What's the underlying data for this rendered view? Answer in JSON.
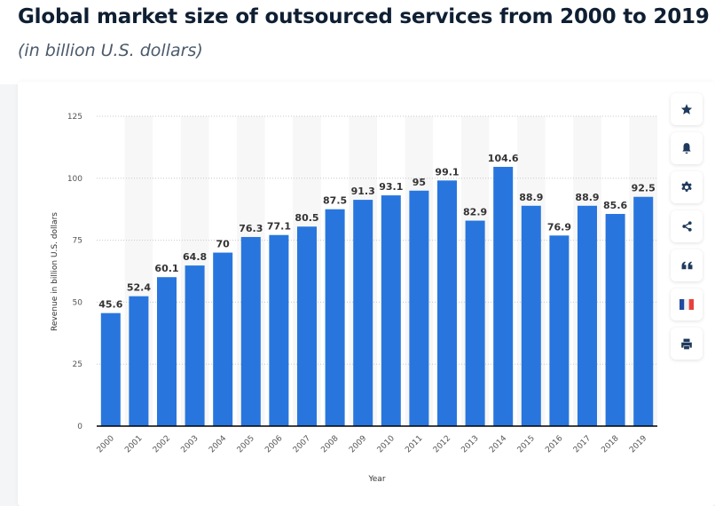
{
  "header": {
    "title": "Global market size of outsourced services from 2000 to 2019",
    "subtitle": "(in billion U.S. dollars)"
  },
  "toolbar": {
    "buttons": [
      {
        "name": "favorite",
        "icon": "star-icon"
      },
      {
        "name": "notification",
        "icon": "bell-icon"
      },
      {
        "name": "settings",
        "icon": "gear-icon"
      },
      {
        "name": "share",
        "icon": "share-icon"
      },
      {
        "name": "cite",
        "icon": "quote-icon"
      },
      {
        "name": "language",
        "icon": "french-flag-icon"
      },
      {
        "name": "print",
        "icon": "printer-icon"
      }
    ]
  },
  "colors": {
    "bar": "#2876dd",
    "text": "#333333",
    "axis": "#000000",
    "gridline": "#c8c8c8",
    "stripe": "#f7f7f7",
    "icon": "#1f3a5c"
  },
  "chart_data": {
    "type": "bar",
    "title": "Global market size of outsourced services from 2000 to 2019",
    "subtitle": "(in billion U.S. dollars)",
    "xlabel": "Year",
    "ylabel": "Revenue in billion U.S. dollars",
    "categories": [
      "2000",
      "2001",
      "2002",
      "2003",
      "2004",
      "2005",
      "2006",
      "2007",
      "2008",
      "2009",
      "2010",
      "2011",
      "2012",
      "2013",
      "2014",
      "2015",
      "2016",
      "2017",
      "2018",
      "2019"
    ],
    "values": [
      45.6,
      52.4,
      60.1,
      64.8,
      70,
      76.3,
      77.1,
      80.5,
      87.5,
      91.3,
      93.1,
      95,
      99.1,
      82.9,
      104.6,
      88.9,
      76.9,
      88.9,
      85.6,
      92.5
    ],
    "data_labels": [
      "45.6",
      "52.4",
      "60.1",
      "64.8",
      "70",
      "76.3",
      "77.1",
      "80.5",
      "87.5",
      "91.3",
      "93.1",
      "95",
      "99.1",
      "82.9",
      "104.6",
      "88.9",
      "76.9",
      "88.9",
      "85.6",
      "92.5"
    ],
    "yticks": [
      0,
      25,
      50,
      75,
      100,
      125
    ],
    "ytick_labels": [
      "0",
      "25",
      "50",
      "75",
      "100",
      "125"
    ],
    "ylim": [
      0,
      125
    ],
    "grid": true,
    "legend": "none"
  }
}
